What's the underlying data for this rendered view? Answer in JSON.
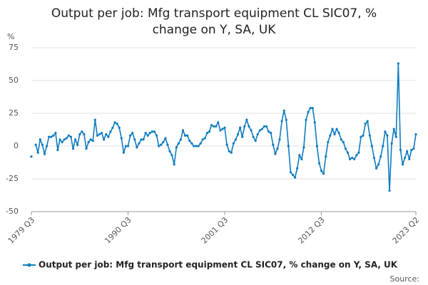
{
  "chart_data": {
    "type": "line",
    "title": [
      "Output per job: Mfg transport equipment CL SIC07, %",
      "change on Y, SA, UK"
    ],
    "y_label": "%",
    "source": "Source:",
    "categories": [
      "1979 Q3",
      null,
      null,
      null,
      null,
      null,
      null,
      null,
      null,
      null,
      null,
      null,
      null,
      null,
      null,
      null,
      null,
      null,
      null,
      null,
      null,
      null,
      null,
      null,
      null,
      null,
      null,
      null,
      null,
      null,
      null,
      null,
      null,
      null,
      null,
      null,
      null,
      null,
      null,
      null,
      null,
      null,
      null,
      null,
      "1990 Q3",
      null,
      null,
      null,
      null,
      null,
      null,
      null,
      null,
      null,
      null,
      null,
      null,
      null,
      null,
      null,
      null,
      null,
      null,
      null,
      null,
      null,
      null,
      null,
      null,
      null,
      null,
      null,
      null,
      null,
      null,
      null,
      null,
      null,
      null,
      null,
      null,
      null,
      null,
      null,
      null,
      null,
      null,
      null,
      "2001 Q3",
      null,
      null,
      null,
      null,
      null,
      null,
      null,
      null,
      null,
      null,
      null,
      null,
      null,
      null,
      null,
      null,
      null,
      null,
      null,
      null,
      null,
      null,
      null,
      null,
      null,
      null,
      null,
      null,
      null,
      null,
      null,
      null,
      null,
      null,
      null,
      null,
      null,
      null,
      null,
      null,
      null,
      null,
      null,
      "2012 Q3",
      null,
      null,
      null,
      null,
      null,
      null,
      null,
      null,
      null,
      null,
      null,
      null,
      null,
      null,
      null,
      null,
      null,
      null,
      null,
      null,
      null,
      null,
      null,
      null,
      null,
      null,
      null,
      null,
      null,
      null,
      null,
      null,
      null,
      null,
      null,
      null,
      null,
      null,
      null,
      null,
      null,
      null,
      "2023 Q2"
    ],
    "series": [
      {
        "name": "Output per job: Mfg transport equipment CL SIC07, % change on Y, SA, UK",
        "color": "#0f7cbf",
        "values": [
          -8,
          null,
          1,
          -5,
          5,
          1,
          -6,
          0,
          7,
          7,
          8,
          10,
          -3,
          5,
          3,
          5,
          6,
          8,
          7,
          -2,
          5,
          1,
          9,
          11,
          9,
          -2,
          3,
          5,
          4,
          20,
          8,
          9,
          10,
          5,
          9,
          7,
          11,
          14,
          18,
          17,
          14,
          6,
          -5,
          0,
          0,
          8,
          10,
          5,
          -1,
          2,
          5,
          5,
          10,
          8,
          10,
          11,
          11,
          8,
          0,
          1,
          3,
          6,
          1,
          -4,
          -7,
          -14,
          -1,
          2,
          5,
          12,
          8,
          8,
          4,
          2,
          0,
          0,
          0,
          2,
          5,
          6,
          10,
          11,
          16,
          15,
          15,
          18,
          12,
          13,
          14,
          1,
          -4,
          -5,
          2,
          5,
          9,
          14,
          7,
          15,
          20,
          15,
          12,
          7,
          4,
          9,
          12,
          13,
          15,
          15,
          11,
          10,
          1,
          -6,
          -2,
          5,
          19,
          27,
          20,
          0,
          -20,
          -22,
          -24,
          -17,
          -7,
          -10,
          -1,
          20,
          26,
          29,
          29,
          18,
          0,
          -13,
          -19,
          -21,
          -8,
          3,
          8,
          13,
          9,
          13,
          10,
          5,
          3,
          -2,
          -5,
          -10,
          -9,
          -10,
          -7,
          -5,
          7,
          8,
          17,
          19,
          8,
          0,
          -9,
          -17,
          -14,
          -8,
          0,
          11,
          8,
          -34,
          2,
          13,
          7,
          63,
          -3,
          -14,
          -9,
          -4,
          -10,
          -3,
          -2,
          9
        ]
      }
    ],
    "ylim": [
      -50,
      75
    ],
    "yticks": [
      -50,
      -25,
      0,
      25,
      50,
      75
    ],
    "grid": true
  }
}
